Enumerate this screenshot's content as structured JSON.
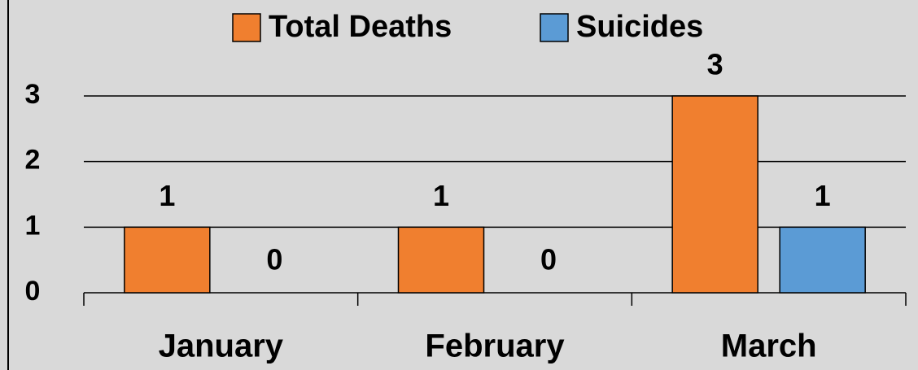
{
  "chart_data": {
    "type": "bar",
    "categories": [
      "January",
      "February",
      "March"
    ],
    "series": [
      {
        "name": "Total Deaths",
        "color": "#f07f2f",
        "values": [
          1,
          1,
          3
        ]
      },
      {
        "name": "Suicides",
        "color": "#5b9bd5",
        "values": [
          0,
          0,
          1
        ]
      }
    ],
    "ylim": [
      0,
      3
    ],
    "yticks": [
      0,
      1,
      2,
      3
    ],
    "grid": true,
    "legend": "top"
  }
}
